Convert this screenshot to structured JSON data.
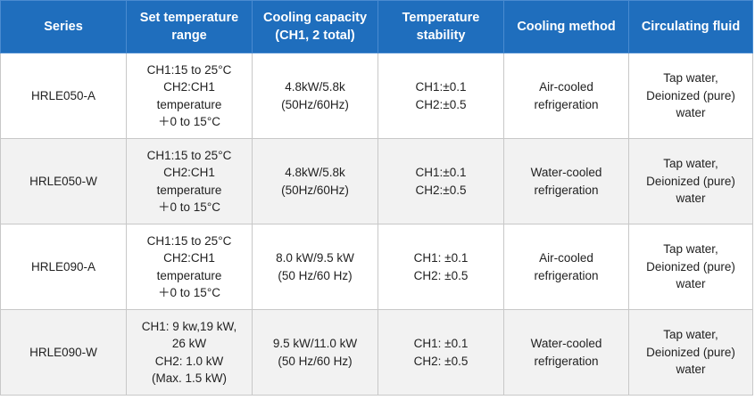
{
  "table": {
    "headers": [
      [
        "Series"
      ],
      [
        "Set temperature",
        "range"
      ],
      [
        "Cooling capacity",
        "(CH1, 2 total)"
      ],
      [
        "Temperature",
        "stability"
      ],
      [
        "Cooling method"
      ],
      [
        "Circulating fluid"
      ]
    ],
    "rows": [
      {
        "series": "HRLE050-A",
        "range": [
          "CH1:15 to 25°C",
          "CH2:CH1",
          "temperature",
          "＋0 to 15°C"
        ],
        "capacity": [
          "4.8kW/5.8k",
          "(50Hz/60Hz)"
        ],
        "stability": [
          "CH1:±0.1",
          "CH2:±0.5"
        ],
        "method": [
          "Air-cooled",
          "refrigeration"
        ],
        "fluid": [
          "Tap water,",
          "Deionized (pure)",
          "water"
        ]
      },
      {
        "series": "HRLE050-W",
        "range": [
          "CH1:15 to 25°C",
          "CH2:CH1",
          "temperature",
          "＋0 to 15°C"
        ],
        "capacity": [
          "4.8kW/5.8k",
          "(50Hz/60Hz)"
        ],
        "stability": [
          "CH1:±0.1",
          "CH2:±0.5"
        ],
        "method": [
          "Water-cooled",
          "refrigeration"
        ],
        "fluid": [
          "Tap water,",
          "Deionized (pure)",
          "water"
        ]
      },
      {
        "series": "HRLE090-A",
        "range": [
          "CH1:15 to 25°C",
          "CH2:CH1",
          "temperature",
          "＋0 to 15°C"
        ],
        "capacity": [
          "8.0 kW/9.5 kW",
          "(50 Hz/60 Hz)"
        ],
        "stability": [
          "CH1: ±0.1",
          "CH2: ±0.5"
        ],
        "method": [
          "Air-cooled",
          "refrigeration"
        ],
        "fluid": [
          "Tap water,",
          "Deionized (pure)",
          "water"
        ]
      },
      {
        "series": "HRLE090-W",
        "range": [
          "CH1: 9 kw,19 kW,",
          "26 kW",
          "CH2: 1.0 kW",
          "(Max. 1.5 kW)"
        ],
        "capacity": [
          "9.5 kW/11.0 kW",
          "(50 Hz/60 Hz)"
        ],
        "stability": [
          "CH1: ±0.1",
          "CH2: ±0.5"
        ],
        "method": [
          "Water-cooled",
          "refrigeration"
        ],
        "fluid": [
          "Tap water,",
          "Deionized (pure)",
          "water"
        ]
      }
    ]
  }
}
